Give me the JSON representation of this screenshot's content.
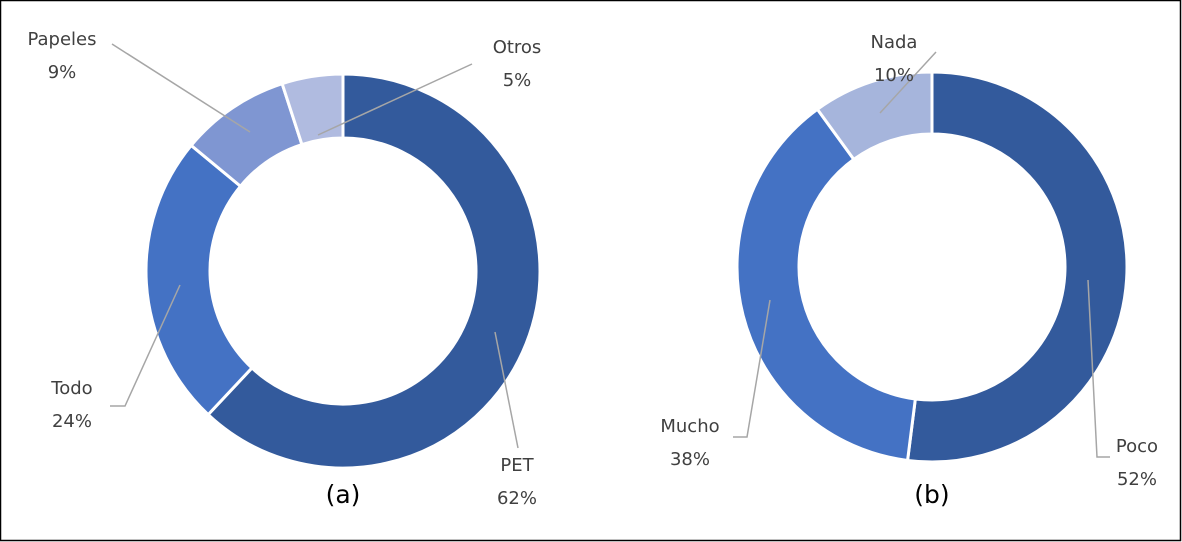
{
  "chart_data": [
    {
      "type": "pie",
      "donut": true,
      "title": "(a)",
      "categories": [
        "PET",
        "Todo",
        "Papeles",
        "Otros"
      ],
      "values": [
        62,
        24,
        9,
        5
      ],
      "value_labels": [
        "62%",
        "24%",
        "9%",
        "5%"
      ],
      "colors": [
        "#335a9c",
        "#4472c4",
        "#7f96d2",
        "#b0bbe0"
      ]
    },
    {
      "type": "pie",
      "donut": true,
      "title": "(b)",
      "categories": [
        "Poco",
        "Mucho",
        "Nada"
      ],
      "values": [
        52,
        38,
        10
      ],
      "value_labels": [
        "52%",
        "38%",
        "10%"
      ],
      "colors": [
        "#335a9c",
        "#4472c4",
        "#a6b5dc"
      ]
    }
  ]
}
